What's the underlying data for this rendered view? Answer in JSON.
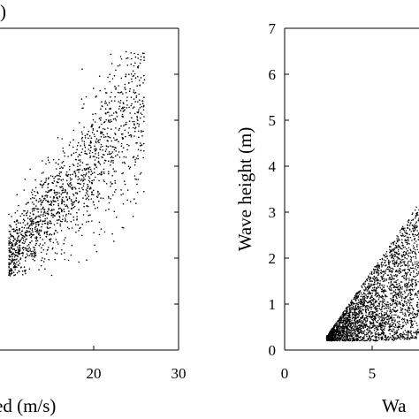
{
  "chart_data": [
    {
      "type": "scatter",
      "panel_label_fragment": ")",
      "xlabel": "ed (m/s)",
      "ylabel": "",
      "xlim": [
        10,
        30
      ],
      "ylim": [
        0,
        7
      ],
      "x_ticks": [
        20,
        30
      ],
      "x_tick_labels": [
        "20",
        "30"
      ],
      "y_ticks": [
        1,
        2,
        3,
        4,
        5,
        6
      ],
      "grid": false,
      "legend": "none",
      "point_color": "#000000",
      "cloud": {
        "description_of_spread": "wind speed vs wave height, dense cluster low, sparse upward",
        "x_range_visible": [
          10,
          26
        ],
        "y_range_visible": [
          1.5,
          6.5
        ]
      }
    },
    {
      "type": "scatter",
      "xlabel": "Wa",
      "ylabel": "Wave height (m)",
      "xlim": [
        0,
        10
      ],
      "ylim": [
        0,
        7
      ],
      "x_ticks": [
        0,
        5
      ],
      "x_tick_labels": [
        "0",
        "5"
      ],
      "y_ticks": [
        0,
        1,
        2,
        3,
        4,
        5,
        6,
        7
      ],
      "y_tick_labels": [
        "0",
        "1",
        "2",
        "3",
        "4",
        "5",
        "6",
        "7"
      ],
      "grid": false,
      "legend": "none",
      "point_color": "#000000",
      "cloud": {
        "x_range_visible": [
          2.5,
          10
        ],
        "y_range_visible": [
          0.2,
          3.6
        ]
      }
    }
  ]
}
